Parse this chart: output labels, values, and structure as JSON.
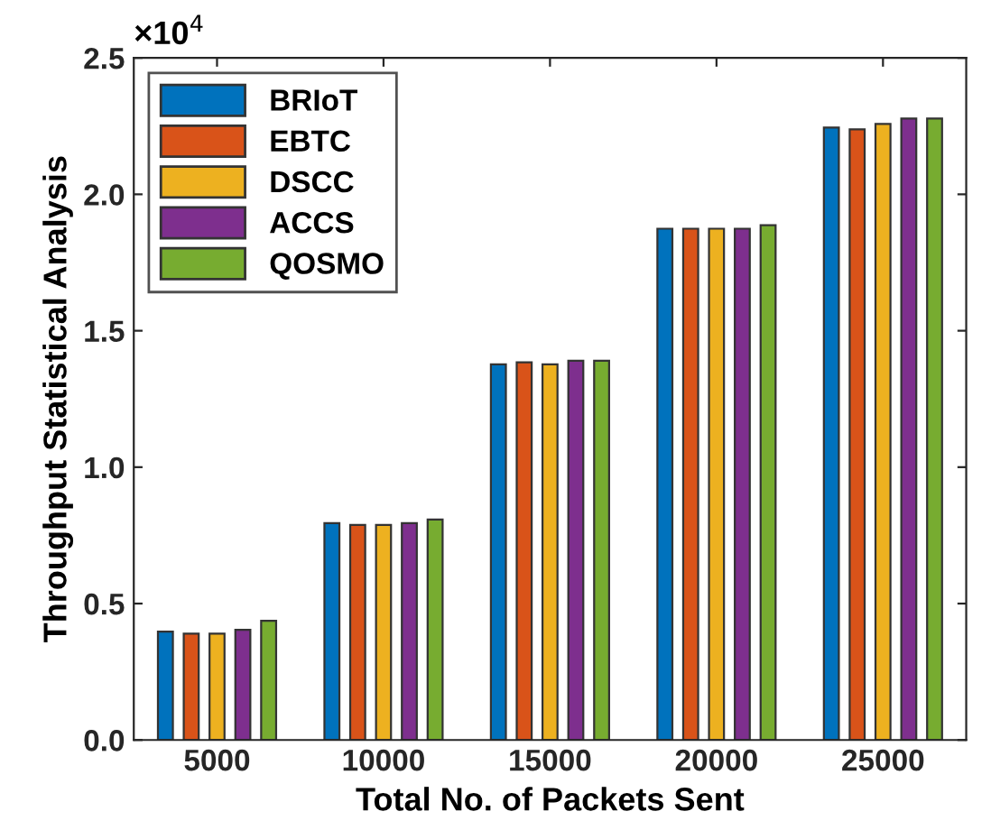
{
  "chart_data": {
    "type": "bar",
    "xlabel": "Total No. of Packets Sent",
    "ylabel": "Throughput Statistical Analysis",
    "categories": [
      "5000",
      "10000",
      "15000",
      "20000",
      "25000"
    ],
    "series": [
      {
        "name": "BRIoT",
        "color": "#0072bd",
        "values": [
          0.397,
          0.795,
          1.377,
          1.874,
          2.245
        ]
      },
      {
        "name": "EBTC",
        "color": "#d95319",
        "values": [
          0.39,
          0.788,
          1.384,
          1.874,
          2.238
        ]
      },
      {
        "name": "DSCC",
        "color": "#edb120",
        "values": [
          0.39,
          0.788,
          1.377,
          1.874,
          2.258
        ]
      },
      {
        "name": "ACCS",
        "color": "#7e2f8e",
        "values": [
          0.404,
          0.795,
          1.39,
          1.874,
          2.278
        ]
      },
      {
        "name": "QOSMO",
        "color": "#77ac30",
        "values": [
          0.437,
          0.808,
          1.39,
          1.887,
          2.278
        ]
      }
    ],
    "ylim": [
      0,
      2.5
    ],
    "yticks": [
      {
        "value": 0,
        "label": "0.0"
      },
      0.5,
      {
        "value": 1,
        "label": "1.0"
      },
      1.5,
      {
        "value": 2,
        "label": "2.0"
      },
      2.5
    ],
    "annotations": [
      "×10$^{4}$"
    ],
    "legend": "top left",
    "grid": false
  }
}
